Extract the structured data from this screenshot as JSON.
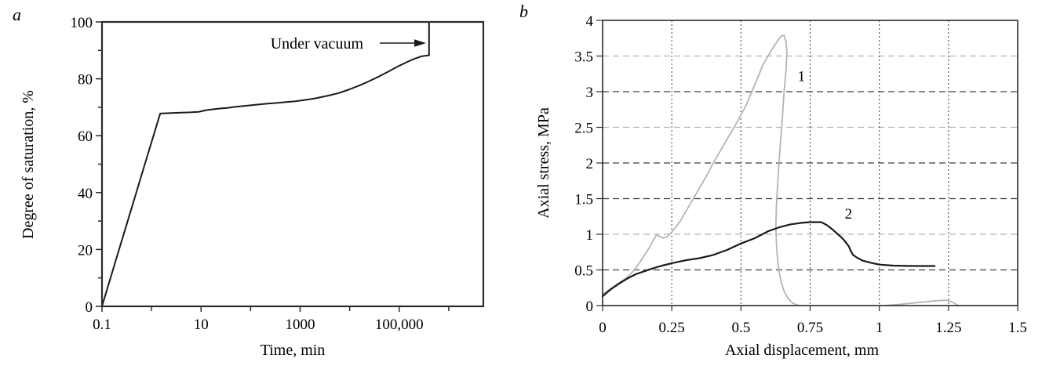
{
  "figure": {
    "background": "#ffffff",
    "panel_a_label": "a",
    "panel_b_label": "b"
  },
  "colors": {
    "axis": "#2b2b2b",
    "curve_dark": "#1a1a1a",
    "curve_gray": "#b4b4b4",
    "grid_dark": "#3f3f3f",
    "grid_gray": "#b5b5b5",
    "grid_dotted": "#4a4a4a",
    "text": "#000000"
  },
  "chart_data": [
    {
      "id": "saturation",
      "panel": "a",
      "type": "line",
      "x_scale": "log",
      "xlabel": "Time, min",
      "ylabel": "Degree of saturation, %",
      "xlim": [
        0.1,
        5000000
      ],
      "ylim": [
        0,
        100
      ],
      "grid": false,
      "x_major_ticks": {
        "values": [
          0.1,
          10,
          1000,
          100000
        ],
        "labels": [
          "0.1",
          "10",
          "1000",
          "100,000"
        ]
      },
      "x_minor_ticks": [
        1,
        100,
        10000,
        1000000
      ],
      "y_major_ticks": {
        "values": [
          0,
          20,
          40,
          60,
          80,
          100
        ],
        "labels": [
          "0",
          "20",
          "40",
          "60",
          "80",
          "100"
        ]
      },
      "y_minor_ticks": [
        10,
        30,
        50,
        70,
        90
      ],
      "annotation": {
        "text": "Under vacuum"
      },
      "series": [
        {
          "name": "saturation-curve",
          "color": "#1a1a1a",
          "width": 2,
          "segments": [
            [
              [
                0.1,
                0
              ],
              [
                0.2,
                17.5
              ],
              [
                0.4,
                34.8
              ],
              [
                0.8,
                52.2
              ],
              [
                1.2,
                62.3
              ],
              [
                1.5,
                67.8
              ],
              [
                2.5,
                68.0
              ],
              [
                4,
                68.1
              ],
              [
                6,
                68.2
              ],
              [
                9,
                68.4
              ],
              [
                13,
                69.0
              ],
              [
                18,
                69.3
              ],
              [
                25,
                69.6
              ],
              [
                35,
                69.8
              ],
              [
                50,
                70.2
              ],
              [
                70,
                70.4
              ],
              [
                100,
                70.7
              ],
              [
                150,
                71.0
              ],
              [
                220,
                71.3
              ],
              [
                320,
                71.5
              ],
              [
                500,
                71.8
              ],
              [
                800,
                72.1
              ],
              [
                1200,
                72.5
              ],
              [
                2000,
                73.1
              ],
              [
                3500,
                74.0
              ],
              [
                6000,
                75.0
              ],
              [
                10000,
                76.3
              ],
              [
                16000,
                77.7
              ],
              [
                25000,
                79.2
              ],
              [
                40000,
                80.9
              ],
              [
                60000,
                82.5
              ],
              [
                90000,
                84.2
              ],
              [
                140000,
                85.8
              ],
              [
                200000,
                87.0
              ],
              [
                280000,
                87.9
              ],
              [
                400000,
                88.3
              ],
              [
                400000,
                100
              ]
            ]
          ]
        }
      ]
    },
    {
      "id": "stress",
      "panel": "b",
      "type": "line",
      "x_scale": "linear",
      "xlabel": "Axial displacement, mm",
      "ylabel": "Axial stress, MPa",
      "xlim": [
        0,
        1.5
      ],
      "ylim": [
        0,
        4
      ],
      "grid": true,
      "x_major_ticks": {
        "values": [
          0,
          0.25,
          0.5,
          0.75,
          1,
          1.25,
          1.5
        ],
        "labels": [
          "0",
          "0.25",
          "0.5",
          "0.75",
          "1",
          "1.25",
          "1.5"
        ]
      },
      "x_minor_ticks": [],
      "y_major_ticks": {
        "values": [
          0,
          0.5,
          1,
          1.5,
          2,
          2.5,
          3,
          3.5,
          4
        ],
        "labels": [
          "0",
          "0.5",
          "1",
          "1.5",
          "2",
          "2.5",
          "3",
          "3.5",
          "4"
        ]
      },
      "y_minor_ticks": [],
      "h_grid": [
        {
          "value": 0.5,
          "color": "#3f3f3f"
        },
        {
          "value": 1.0,
          "color": "#b5b5b5"
        },
        {
          "value": 1.5,
          "color": "#3f3f3f"
        },
        {
          "value": 2.0,
          "color": "#3f3f3f"
        },
        {
          "value": 2.5,
          "color": "#b5b5b5"
        },
        {
          "value": 3.0,
          "color": "#3f3f3f"
        },
        {
          "value": 3.5,
          "color": "#b5b5b5"
        }
      ],
      "v_grid": [
        0.25,
        0.5,
        0.75,
        1,
        1.25
      ],
      "series": [
        {
          "name": "curve-1",
          "label": "1",
          "label_at": [
            0.705,
            3.15
          ],
          "color": "#b4b4b4",
          "width": 1.8,
          "segments": [
            [
              [
                0,
                0.16
              ],
              [
                0.03,
                0.24
              ],
              [
                0.06,
                0.32
              ],
              [
                0.09,
                0.4
              ],
              [
                0.11,
                0.48
              ],
              [
                0.13,
                0.58
              ],
              [
                0.15,
                0.7
              ],
              [
                0.17,
                0.82
              ],
              [
                0.185,
                0.93
              ],
              [
                0.195,
                0.99
              ],
              [
                0.205,
                0.97
              ],
              [
                0.22,
                0.95
              ],
              [
                0.235,
                0.97
              ],
              [
                0.25,
                1.03
              ],
              [
                0.28,
                1.18
              ],
              [
                0.31,
                1.38
              ],
              [
                0.34,
                1.58
              ],
              [
                0.37,
                1.78
              ],
              [
                0.4,
                2.0
              ],
              [
                0.43,
                2.2
              ],
              [
                0.46,
                2.4
              ],
              [
                0.49,
                2.6
              ],
              [
                0.52,
                2.82
              ],
              [
                0.55,
                3.1
              ],
              [
                0.58,
                3.38
              ],
              [
                0.61,
                3.58
              ],
              [
                0.63,
                3.7
              ],
              [
                0.645,
                3.78
              ],
              [
                0.655,
                3.79
              ],
              [
                0.663,
                3.7
              ],
              [
                0.666,
                3.55
              ],
              [
                0.663,
                3.3
              ],
              [
                0.656,
                3.0
              ],
              [
                0.649,
                2.6
              ],
              [
                0.641,
                2.2
              ],
              [
                0.634,
                1.8
              ],
              [
                0.628,
                1.4
              ],
              [
                0.626,
                1.1
              ],
              [
                0.629,
                0.8
              ],
              [
                0.635,
                0.55
              ],
              [
                0.644,
                0.35
              ],
              [
                0.656,
                0.2
              ],
              [
                0.67,
                0.1
              ],
              [
                0.685,
                0.04
              ],
              [
                0.7,
                0.01
              ],
              [
                0.71,
                0
              ]
            ],
            [
              [
                1.02,
                0
              ],
              [
                1.07,
                0.015
              ],
              [
                1.12,
                0.035
              ],
              [
                1.17,
                0.055
              ],
              [
                1.21,
                0.07
              ],
              [
                1.24,
                0.075
              ],
              [
                1.26,
                0.055
              ],
              [
                1.275,
                0.025
              ],
              [
                1.285,
                0
              ]
            ]
          ]
        },
        {
          "name": "curve-2",
          "label": "2",
          "label_at": [
            0.875,
            1.22
          ],
          "color": "#1a1a1a",
          "width": 2.2,
          "segments": [
            [
              [
                0,
                0.13
              ],
              [
                0.03,
                0.23
              ],
              [
                0.06,
                0.31
              ],
              [
                0.09,
                0.38
              ],
              [
                0.12,
                0.44
              ],
              [
                0.15,
                0.48
              ],
              [
                0.18,
                0.52
              ],
              [
                0.21,
                0.555
              ],
              [
                0.25,
                0.595
              ],
              [
                0.3,
                0.635
              ],
              [
                0.35,
                0.665
              ],
              [
                0.4,
                0.71
              ],
              [
                0.45,
                0.78
              ],
              [
                0.5,
                0.87
              ],
              [
                0.55,
                0.945
              ],
              [
                0.6,
                1.045
              ],
              [
                0.64,
                1.1
              ],
              [
                0.68,
                1.14
              ],
              [
                0.72,
                1.16
              ],
              [
                0.75,
                1.17
              ],
              [
                0.79,
                1.17
              ],
              [
                0.81,
                1.13
              ],
              [
                0.83,
                1.07
              ],
              [
                0.85,
                1.0
              ],
              [
                0.862,
                0.96
              ],
              [
                0.872,
                0.92
              ],
              [
                0.882,
                0.87
              ],
              [
                0.89,
                0.83
              ],
              [
                0.896,
                0.77
              ],
              [
                0.905,
                0.71
              ],
              [
                0.92,
                0.67
              ],
              [
                0.94,
                0.63
              ],
              [
                0.97,
                0.6
              ],
              [
                1.0,
                0.575
              ],
              [
                1.05,
                0.56
              ],
              [
                1.12,
                0.555
              ],
              [
                1.2,
                0.555
              ]
            ]
          ]
        }
      ]
    }
  ]
}
